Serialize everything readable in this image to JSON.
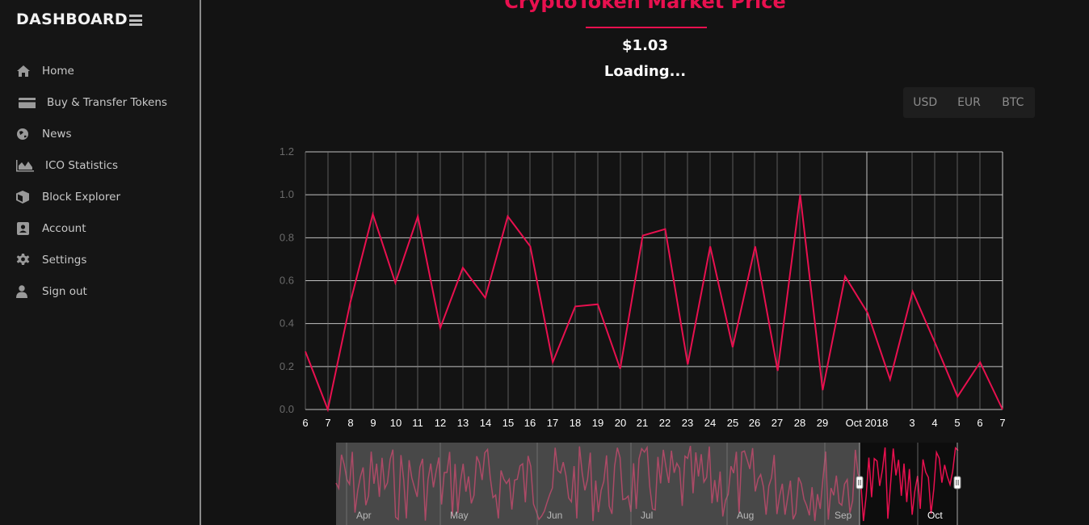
{
  "sidebar": {
    "brand": "DASHBOARD",
    "items": [
      {
        "label": "Home",
        "icon": "home-icon"
      },
      {
        "label": "Buy & Transfer Tokens",
        "icon": "credit-card-icon"
      },
      {
        "label": "News",
        "icon": "globe-icon"
      },
      {
        "label": "ICO Statistics",
        "icon": "area-chart-icon"
      },
      {
        "label": "Block Explorer",
        "icon": "cube-icon"
      },
      {
        "label": "Account",
        "icon": "address-book-icon"
      },
      {
        "label": "Settings",
        "icon": "gear-icon"
      },
      {
        "label": "Sign out",
        "icon": "user-icon"
      }
    ]
  },
  "header": {
    "title": "CryptoToken Market Price",
    "price": "$1.03",
    "status": "Loading..."
  },
  "currencies": [
    "USD",
    "EUR",
    "BTC"
  ],
  "colors": {
    "accent": "#e8104f",
    "background": "#131313",
    "navigator_mask": "#7a7a7a"
  },
  "chart_data": {
    "type": "line",
    "x_tick_labels": [
      "6",
      "7",
      "8",
      "9",
      "10",
      "11",
      "12",
      "13",
      "14",
      "15",
      "16",
      "17",
      "18",
      "19",
      "20",
      "21",
      "22",
      "23",
      "24",
      "25",
      "26",
      "27",
      "28",
      "29",
      "Oct 2018",
      "3",
      "4",
      "5",
      "6",
      "7"
    ],
    "ylim": [
      0,
      1.2
    ],
    "y_ticks": [
      "0.0",
      "0.2",
      "0.4",
      "0.6",
      "0.8",
      "1.0",
      "1.2"
    ],
    "series": [
      {
        "values": [
          0.27,
          0.0,
          0.5,
          0.91,
          0.59,
          0.9,
          0.38,
          0.66,
          0.52,
          0.9,
          0.76,
          0.22,
          0.48,
          0.49,
          0.19,
          0.81,
          0.84,
          0.21,
          0.76,
          0.29,
          0.76,
          0.18,
          1.0,
          0.09,
          0.62,
          0.45,
          0.14,
          0.55,
          0.31,
          0.06,
          0.22,
          0.0
        ]
      }
    ],
    "grid": true,
    "navigator": {
      "labels": [
        "Apr",
        "May",
        "Jun",
        "Jul",
        "Aug",
        "Sep",
        "Oct"
      ]
    }
  }
}
